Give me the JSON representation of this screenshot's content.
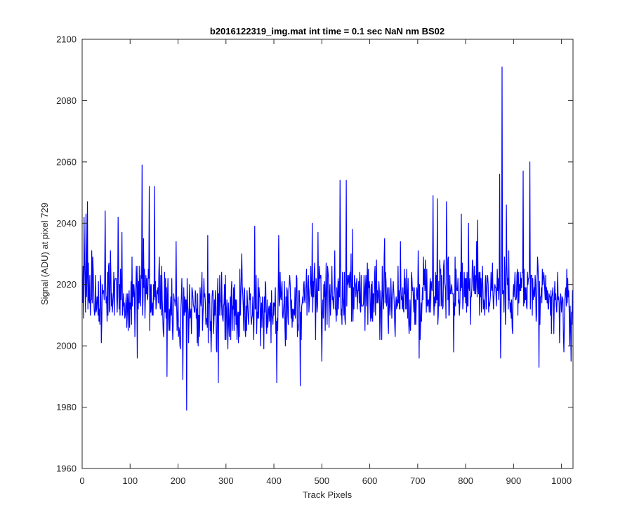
{
  "chart_data": {
    "type": "line",
    "title": "b2016122319_img.mat int time = 0.1 sec  NaN nm BS02",
    "xlabel": "Track Pixels",
    "ylabel": "Signal (ADU) at pixel 729",
    "xlim": [
      0,
      1024
    ],
    "ylim": [
      1960,
      2100
    ],
    "x_ticks": [
      "0",
      "100",
      "200",
      "300",
      "400",
      "500",
      "600",
      "700",
      "800",
      "900",
      "1000"
    ],
    "y_ticks": [
      "1960",
      "1980",
      "2000",
      "2020",
      "2040",
      "2060",
      "2080",
      "2100"
    ],
    "grid": false,
    "series_color": "#0000ff",
    "series": [
      {
        "x_start": 1,
        "x_step": 1,
        "values_note_count": 1024,
        "values": []
      }
    ],
    "anchor_points": [
      {
        "x": 1,
        "y": 2014
      },
      {
        "x": 4,
        "y": 2042
      },
      {
        "x": 8,
        "y": 2043
      },
      {
        "x": 11,
        "y": 2047
      },
      {
        "x": 20,
        "y": 2031
      },
      {
        "x": 48,
        "y": 2044
      },
      {
        "x": 75,
        "y": 2042
      },
      {
        "x": 83,
        "y": 2037
      },
      {
        "x": 115,
        "y": 1996
      },
      {
        "x": 125,
        "y": 2059
      },
      {
        "x": 128,
        "y": 2035
      },
      {
        "x": 140,
        "y": 2052
      },
      {
        "x": 151,
        "y": 2052
      },
      {
        "x": 177,
        "y": 1990
      },
      {
        "x": 196,
        "y": 2034
      },
      {
        "x": 210,
        "y": 1989
      },
      {
        "x": 218,
        "y": 1979
      },
      {
        "x": 262,
        "y": 2036
      },
      {
        "x": 284,
        "y": 1988
      },
      {
        "x": 333,
        "y": 2030
      },
      {
        "x": 360,
        "y": 2039
      },
      {
        "x": 406,
        "y": 1988
      },
      {
        "x": 410,
        "y": 2036
      },
      {
        "x": 455,
        "y": 1987
      },
      {
        "x": 480,
        "y": 2040
      },
      {
        "x": 492,
        "y": 2037
      },
      {
        "x": 500,
        "y": 1995
      },
      {
        "x": 538,
        "y": 2054
      },
      {
        "x": 551,
        "y": 2054
      },
      {
        "x": 564,
        "y": 2038
      },
      {
        "x": 614,
        "y": 2028
      },
      {
        "x": 631,
        "y": 2035
      },
      {
        "x": 664,
        "y": 2034
      },
      {
        "x": 703,
        "y": 1996
      },
      {
        "x": 732,
        "y": 2049
      },
      {
        "x": 741,
        "y": 2048
      },
      {
        "x": 760,
        "y": 2047
      },
      {
        "x": 775,
        "y": 1998
      },
      {
        "x": 791,
        "y": 2043
      },
      {
        "x": 806,
        "y": 2040
      },
      {
        "x": 825,
        "y": 2041
      },
      {
        "x": 871,
        "y": 2056
      },
      {
        "x": 873,
        "y": 1996
      },
      {
        "x": 876,
        "y": 2091
      },
      {
        "x": 885,
        "y": 2046
      },
      {
        "x": 920,
        "y": 2057
      },
      {
        "x": 934,
        "y": 2060
      },
      {
        "x": 953,
        "y": 1993
      },
      {
        "x": 985,
        "y": 2015
      },
      {
        "x": 1005,
        "y": 1998
      },
      {
        "x": 1010,
        "y": 2013
      },
      {
        "x": 1020,
        "y": 1995
      },
      {
        "x": 1024,
        "y": 2014
      }
    ]
  }
}
